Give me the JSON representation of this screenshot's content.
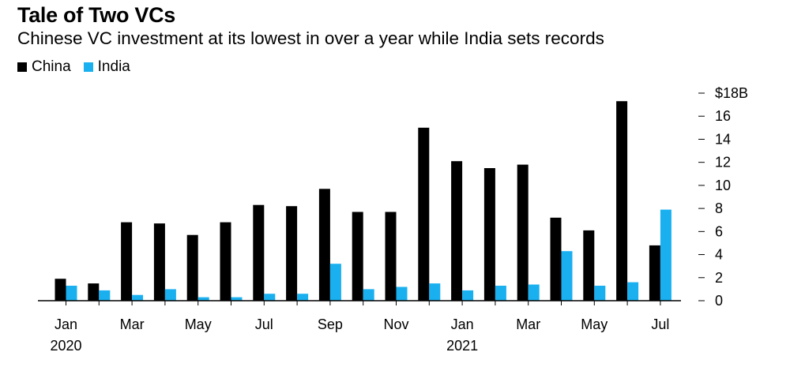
{
  "header": {
    "title": "Tale of Two VCs",
    "subtitle": "Chinese VC investment at its lowest in over a year while India sets records"
  },
  "chart_data": {
    "type": "bar",
    "categories": [
      "Jan 2020",
      "Feb 2020",
      "Mar 2020",
      "Apr 2020",
      "May 2020",
      "Jun 2020",
      "Jul 2020",
      "Aug 2020",
      "Sep 2020",
      "Oct 2020",
      "Nov 2020",
      "Dec 2020",
      "Jan 2021",
      "Feb 2021",
      "Mar 2021",
      "Apr 2021",
      "May 2021",
      "Jun 2021",
      "Jul 2021"
    ],
    "series": [
      {
        "name": "China",
        "color": "#000000",
        "values": [
          1.9,
          1.5,
          6.8,
          6.7,
          5.7,
          6.8,
          8.3,
          8.2,
          9.7,
          7.7,
          7.7,
          15.0,
          12.1,
          11.5,
          11.8,
          7.2,
          6.1,
          17.3,
          4.8
        ]
      },
      {
        "name": "India",
        "color": "#1ab0f0",
        "values": [
          1.3,
          0.9,
          0.5,
          1.0,
          0.3,
          0.3,
          0.6,
          0.6,
          3.2,
          1.0,
          1.2,
          1.5,
          0.9,
          1.3,
          1.4,
          4.3,
          1.3,
          1.6,
          7.9
        ]
      }
    ],
    "x_tick_labels": [
      {
        "index": 0,
        "month": "Jan",
        "year": "2020"
      },
      {
        "index": 2,
        "month": "Mar",
        "year": ""
      },
      {
        "index": 4,
        "month": "May",
        "year": ""
      },
      {
        "index": 6,
        "month": "Jul",
        "year": ""
      },
      {
        "index": 8,
        "month": "Sep",
        "year": ""
      },
      {
        "index": 10,
        "month": "Nov",
        "year": ""
      },
      {
        "index": 12,
        "month": "Jan",
        "year": "2021"
      },
      {
        "index": 14,
        "month": "Mar",
        "year": ""
      },
      {
        "index": 16,
        "month": "May",
        "year": ""
      },
      {
        "index": 18,
        "month": "Jul",
        "year": ""
      }
    ],
    "y_ticks": [
      0,
      2,
      4,
      6,
      8,
      10,
      12,
      14,
      16,
      18
    ],
    "y_tick_labels": [
      "0",
      "2",
      "4",
      "6",
      "8",
      "10",
      "12",
      "14",
      "16",
      "$18B"
    ],
    "ylim": [
      0,
      18
    ],
    "y_axis_side": "right",
    "legend_position": "top-left",
    "grid": false
  }
}
